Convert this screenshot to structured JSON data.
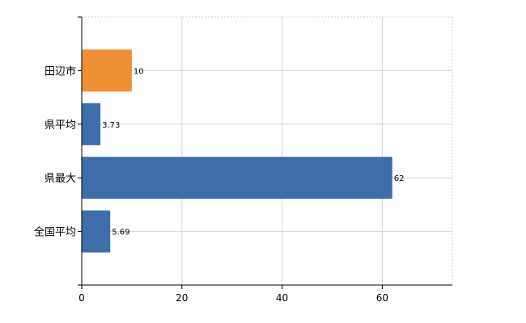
{
  "chart_data": {
    "type": "bar",
    "orientation": "horizontal",
    "categories": [
      "田辺市",
      "県平均",
      "県最大",
      "全国平均"
    ],
    "values": [
      10,
      3.73,
      62,
      5.69
    ],
    "data_labels": [
      "10",
      "3.73",
      "62",
      "5.69"
    ],
    "colors": [
      "#ef8f36",
      "#3e6ea9",
      "#3e6ea9",
      "#3e6ea9"
    ],
    "xlim": [
      0,
      74
    ],
    "xticks": [
      0,
      20,
      40,
      60
    ],
    "title": "",
    "xlabel": "",
    "ylabel": "",
    "grid": true,
    "legend": "none"
  }
}
